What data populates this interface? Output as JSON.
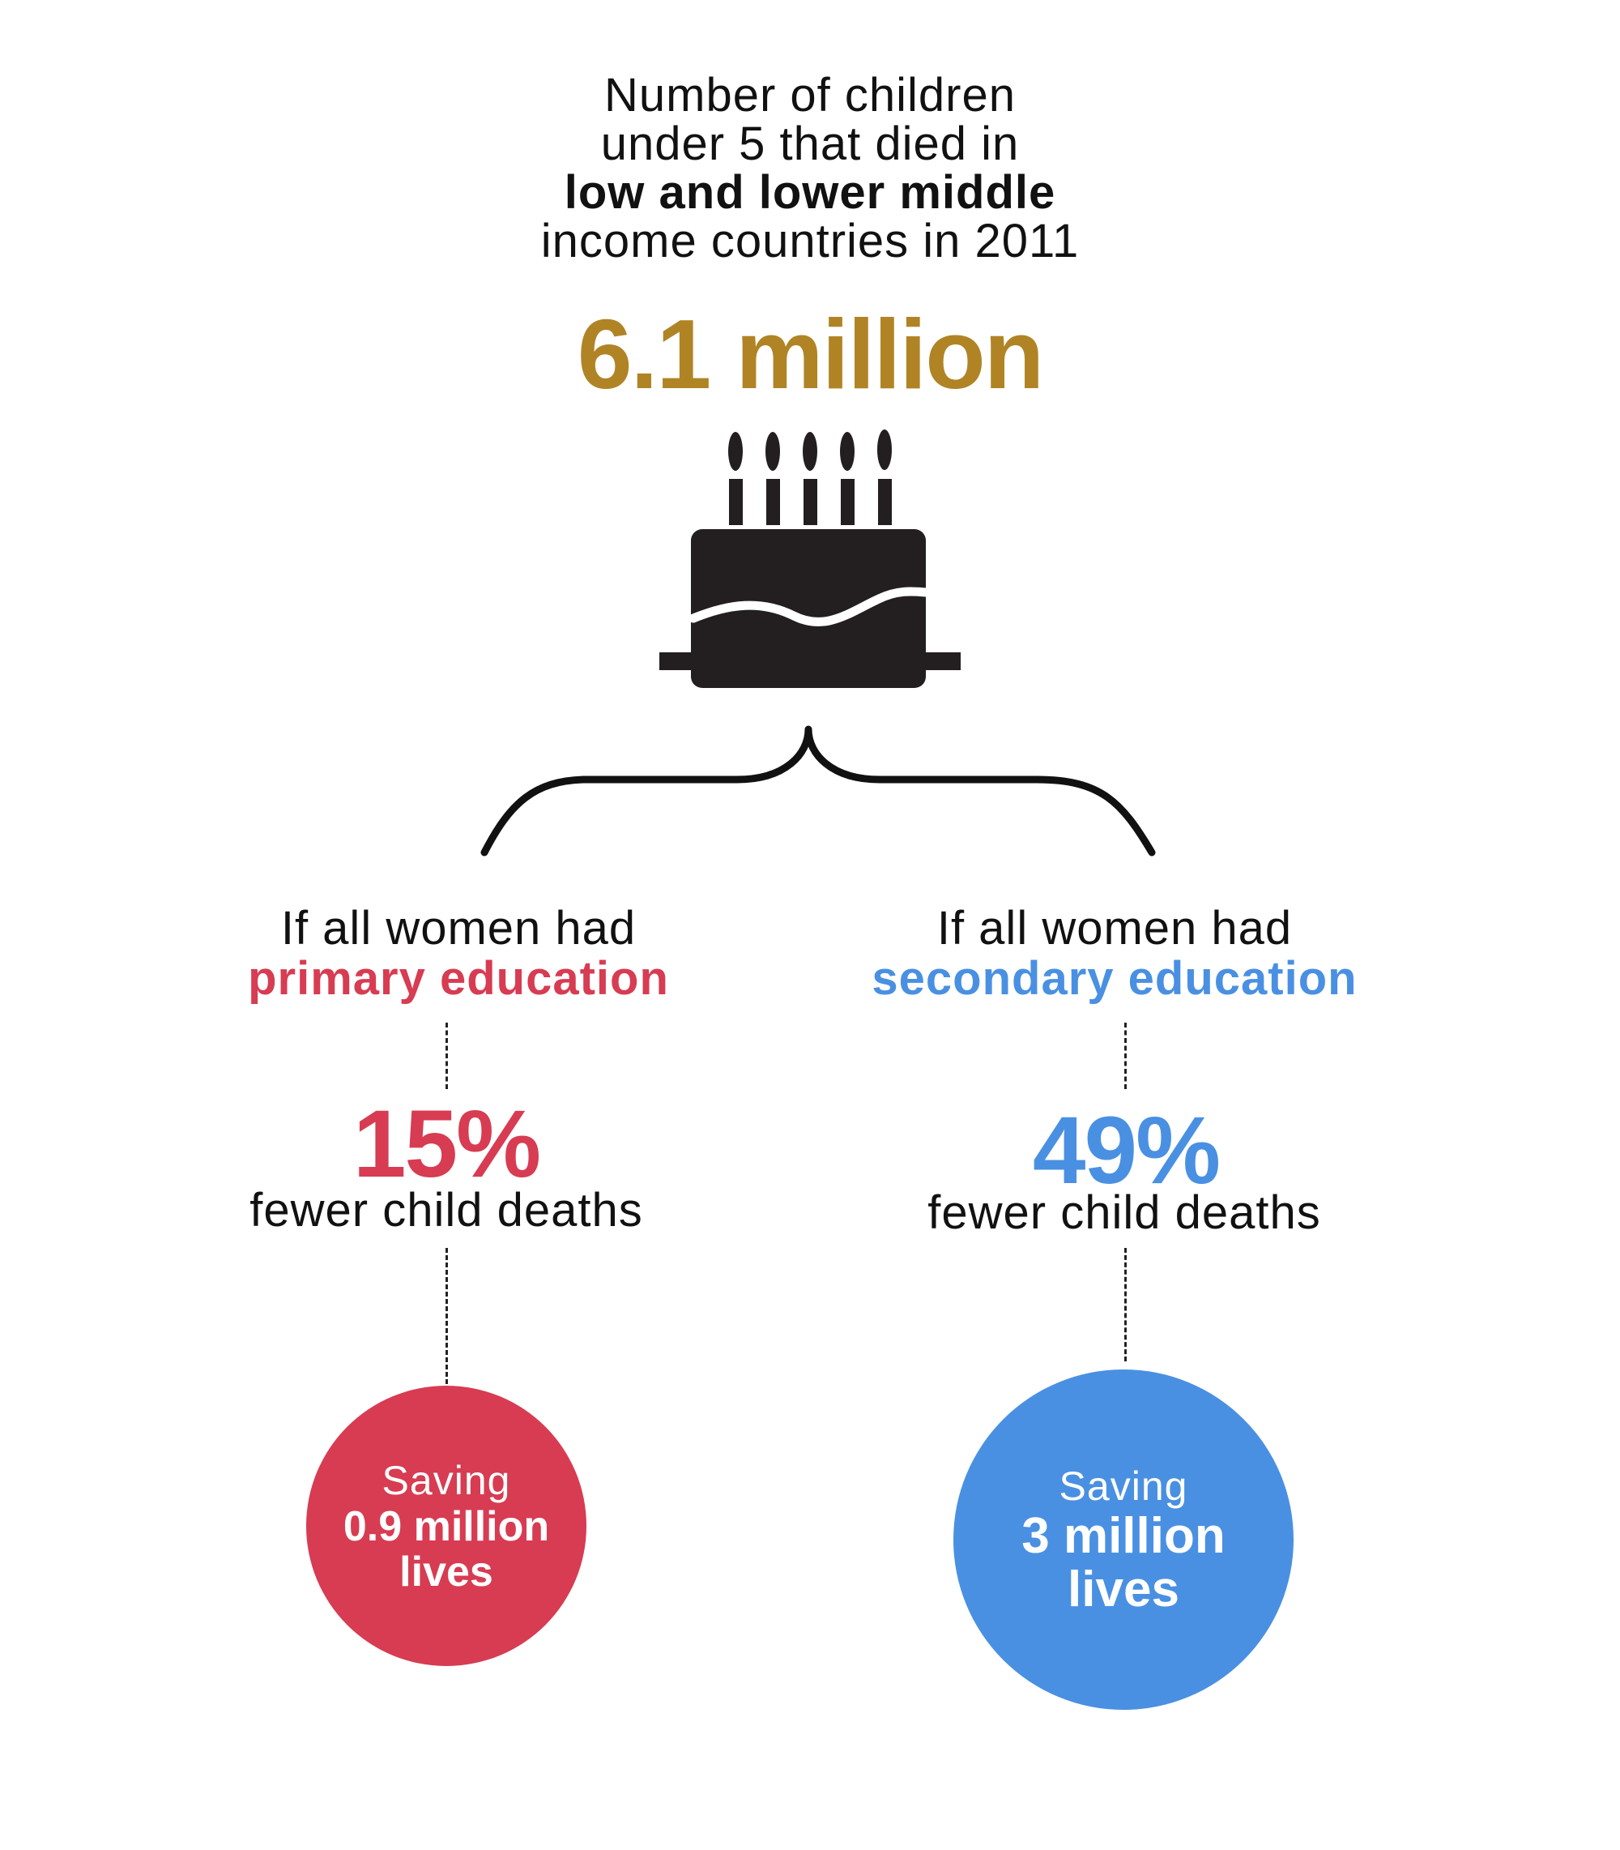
{
  "heading": {
    "line1": "Number of children",
    "line2": "under 5 that died in",
    "line3_bold": "low and lower middle",
    "line4": "income countries in 2011"
  },
  "total": {
    "value": "6.1 million",
    "color": "#B08425"
  },
  "icon": "birthday-cake-icon",
  "branches": [
    {
      "intro": "If all women had",
      "highlight": "primary education",
      "percent": "15%",
      "caption": "fewer child deaths",
      "saving_label": "Saving",
      "saving_amount_line1": "0.9 million",
      "saving_amount_line2": "lives",
      "color": "#D73C52"
    },
    {
      "intro": "If all women had",
      "highlight": "secondary education",
      "percent": "49%",
      "caption": "fewer child deaths",
      "saving_label": "Saving",
      "saving_amount_line1": "3 million",
      "saving_amount_line2": "lives",
      "color": "#4A90E2"
    }
  ]
}
